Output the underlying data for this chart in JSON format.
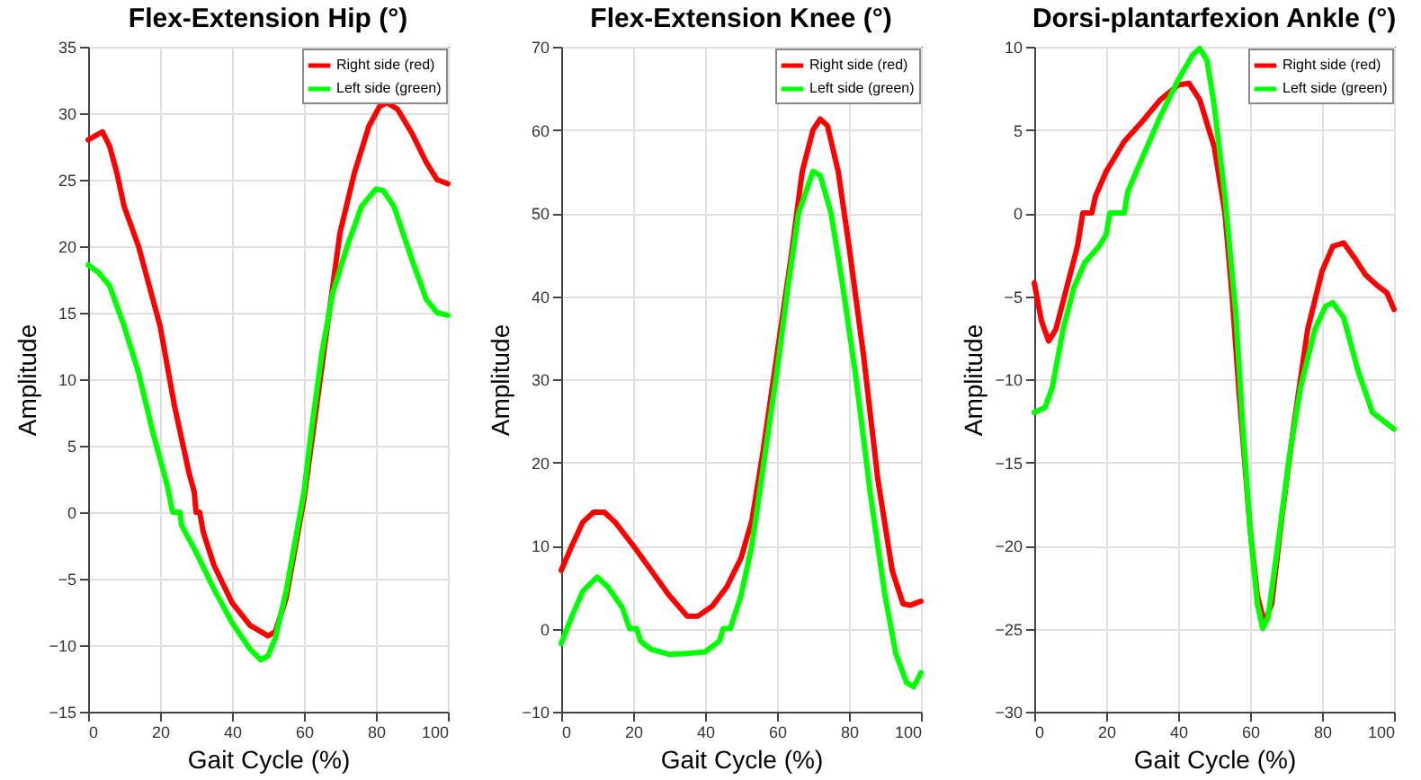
{
  "chart_data": [
    {
      "type": "line",
      "title": "Flex-Extension Hip (°)",
      "xlabel": "Gait Cycle (%)",
      "ylabel": "Amplitude",
      "xlim": [
        0,
        100
      ],
      "xticks": [
        0,
        20,
        40,
        60,
        80,
        100
      ],
      "ylim": [
        -15,
        35
      ],
      "yticks": [
        -15,
        -10,
        -5,
        0,
        5,
        10,
        15,
        20,
        25,
        30,
        35
      ],
      "grid": true,
      "legend": "top right",
      "series": [
        {
          "name": "Right side (red)",
          "color": "#ff0000",
          "x": [
            0,
            2,
            4,
            6,
            8,
            10,
            14,
            18,
            20,
            22,
            24,
            26,
            28,
            29.5,
            30,
            31,
            32,
            35,
            40,
            45,
            50,
            52,
            55,
            58,
            60,
            62,
            65,
            68,
            70,
            74,
            78,
            81,
            83,
            86,
            90,
            94,
            97,
            100
          ],
          "values": [
            28,
            28.3,
            28.6,
            27.5,
            25.5,
            23,
            20,
            16,
            14,
            11,
            8,
            5.5,
            3,
            1.5,
            0,
            0,
            -1.5,
            -4,
            -6.8,
            -8.5,
            -9.3,
            -9,
            -6.5,
            -2,
            1,
            5,
            11,
            17,
            21,
            25.5,
            29,
            30.5,
            30.8,
            30.3,
            28.5,
            26.3,
            25,
            24.7
          ]
        },
        {
          "name": "Left side (green)",
          "color": "#00ff00",
          "x": [
            0,
            3,
            6,
            10,
            14,
            18,
            20,
            22,
            23.5,
            25.5,
            26,
            28,
            30,
            35,
            40,
            45,
            48,
            50,
            52,
            55,
            58,
            60,
            62,
            65,
            68,
            72,
            76,
            80,
            82,
            85,
            90,
            94,
            97,
            100
          ],
          "values": [
            18.6,
            18,
            17,
            14,
            10.5,
            6,
            4,
            2,
            0,
            0,
            -1,
            -2,
            -3,
            -5.8,
            -8.3,
            -10.3,
            -11.1,
            -10.8,
            -9.5,
            -6,
            -1.5,
            1.5,
            6,
            12,
            16.5,
            20,
            23,
            24.3,
            24.2,
            23,
            19,
            16,
            15,
            14.8
          ]
        }
      ]
    },
    {
      "type": "line",
      "title": "Flex-Extension Knee (°)",
      "xlabel": "Gait Cycle (%)",
      "ylabel": "Amplitude",
      "xlim": [
        0,
        100
      ],
      "xticks": [
        0,
        20,
        40,
        60,
        80,
        100
      ],
      "ylim": [
        -10,
        70
      ],
      "yticks": [
        -10,
        0,
        10,
        20,
        30,
        40,
        50,
        60,
        70
      ],
      "grid": true,
      "legend": "top right",
      "series": [
        {
          "name": "Right side (red)",
          "color": "#ff0000",
          "x": [
            0,
            3,
            6,
            9,
            12,
            15,
            20,
            25,
            30,
            35,
            38,
            42,
            46,
            50,
            53,
            56,
            60,
            64,
            67,
            70,
            72,
            74,
            77,
            80,
            84,
            88,
            92,
            95,
            97,
            100
          ],
          "values": [
            7,
            10,
            12.8,
            14,
            14,
            12.8,
            10,
            7,
            4,
            1.5,
            1.5,
            2.7,
            5,
            8.5,
            13,
            21,
            33,
            45,
            55,
            60,
            61.3,
            60.5,
            55,
            46,
            33,
            18,
            7,
            3,
            2.8,
            3.3
          ]
        },
        {
          "name": "Left side (green)",
          "color": "#00ff00",
          "x": [
            0,
            3,
            6,
            10,
            13,
            17,
            19,
            21,
            22,
            25,
            30,
            35,
            40,
            44,
            45,
            47,
            50,
            53,
            56,
            60,
            63,
            66,
            70,
            72,
            75,
            78,
            82,
            86,
            90,
            93,
            96,
            98,
            100
          ],
          "values": [
            -1.8,
            1.5,
            4.5,
            6.2,
            5,
            2.5,
            0,
            0,
            -1.5,
            -2.5,
            -3.1,
            -3,
            -2.8,
            -1.5,
            0,
            0,
            4,
            10,
            19,
            31,
            41,
            50,
            55,
            54.5,
            50,
            42,
            30,
            16,
            4,
            -3,
            -6.5,
            -7,
            -5.3
          ]
        }
      ]
    },
    {
      "type": "line",
      "title": "Dorsi-plantarfexion Ankle (°)",
      "xlabel": "Gait Cycle (%)",
      "ylabel": "Amplitude",
      "xlim": [
        0,
        100
      ],
      "xticks": [
        0,
        20,
        40,
        60,
        80,
        100
      ],
      "ylim": [
        -30,
        10
      ],
      "yticks": [
        -30,
        -25,
        -20,
        -15,
        -10,
        -5,
        0,
        5,
        10
      ],
      "grid": true,
      "legend": "top right",
      "series": [
        {
          "name": "Right side (red)",
          "color": "#ff0000",
          "x": [
            0,
            2,
            4,
            6,
            9,
            12,
            13.5,
            16,
            17,
            20,
            25,
            30,
            35,
            40,
            43,
            46,
            50,
            53,
            55,
            57,
            60,
            62,
            64,
            66,
            69,
            72,
            76,
            80,
            83,
            86,
            89,
            92,
            95,
            98,
            100
          ],
          "values": [
            -4.2,
            -6.5,
            -7.7,
            -7,
            -4.5,
            -2,
            0,
            0,
            1,
            2.5,
            4.3,
            5.5,
            6.8,
            7.7,
            7.8,
            6.8,
            4,
            0,
            -5,
            -11,
            -19,
            -23,
            -24.7,
            -23.5,
            -18,
            -13,
            -7,
            -3.5,
            -2,
            -1.8,
            -2.7,
            -3.7,
            -4.3,
            -4.8,
            -5.8
          ]
        },
        {
          "name": "Left side (green)",
          "color": "#00ff00",
          "x": [
            0,
            3,
            5,
            8,
            11,
            14,
            18,
            20,
            21,
            25,
            26,
            30,
            35,
            40,
            44,
            46,
            48,
            50,
            53,
            56,
            58,
            60,
            62,
            63.5,
            65,
            68,
            71,
            74,
            78,
            81,
            83,
            86,
            90,
            94,
            97,
            100
          ],
          "values": [
            -12,
            -11.7,
            -10.5,
            -7,
            -4.5,
            -3,
            -2,
            -1.3,
            0,
            0,
            1.3,
            3.3,
            5.8,
            8,
            9.5,
            9.9,
            9.2,
            6.5,
            1,
            -6,
            -13,
            -19,
            -23.5,
            -25,
            -24.3,
            -19.5,
            -14.5,
            -10.5,
            -7,
            -5.6,
            -5.4,
            -6.3,
            -9.5,
            -12,
            -12.5,
            -13
          ]
        }
      ]
    }
  ]
}
